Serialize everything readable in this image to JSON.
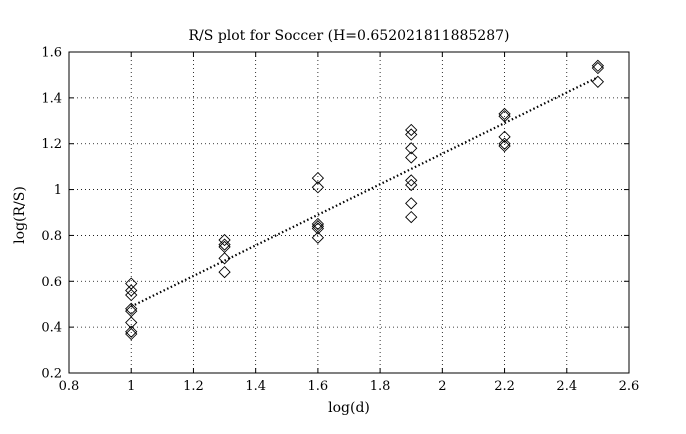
{
  "chart_data": {
    "type": "scatter",
    "title": "R/S plot for Soccer (H=0.652021811885287)",
    "xlabel": "log(d)",
    "ylabel": "log(R/S)",
    "xlim": [
      0.8,
      2.6
    ],
    "ylim": [
      0.2,
      1.6
    ],
    "xticks": [
      0.8,
      1,
      1.2,
      1.4,
      1.6,
      1.8,
      2,
      2.2,
      2.4,
      2.6
    ],
    "yticks": [
      0.2,
      0.4,
      0.6,
      0.8,
      1,
      1.2,
      1.4,
      1.6
    ],
    "grid": "dotted",
    "marker": "diamond",
    "points": [
      {
        "x": 1.0,
        "y": 0.59
      },
      {
        "x": 1.0,
        "y": 0.56
      },
      {
        "x": 1.0,
        "y": 0.54
      },
      {
        "x": 1.0,
        "y": 0.48
      },
      {
        "x": 1.0,
        "y": 0.47
      },
      {
        "x": 1.0,
        "y": 0.42
      },
      {
        "x": 1.0,
        "y": 0.38
      },
      {
        "x": 1.0,
        "y": 0.37
      },
      {
        "x": 1.3,
        "y": 0.78
      },
      {
        "x": 1.3,
        "y": 0.76
      },
      {
        "x": 1.3,
        "y": 0.75
      },
      {
        "x": 1.3,
        "y": 0.7
      },
      {
        "x": 1.3,
        "y": 0.64
      },
      {
        "x": 1.6,
        "y": 1.05
      },
      {
        "x": 1.6,
        "y": 1.01
      },
      {
        "x": 1.6,
        "y": 0.85
      },
      {
        "x": 1.6,
        "y": 0.84
      },
      {
        "x": 1.6,
        "y": 0.83
      },
      {
        "x": 1.6,
        "y": 0.79
      },
      {
        "x": 1.9,
        "y": 1.26
      },
      {
        "x": 1.9,
        "y": 1.24
      },
      {
        "x": 1.9,
        "y": 1.18
      },
      {
        "x": 1.9,
        "y": 1.14
      },
      {
        "x": 1.9,
        "y": 1.04
      },
      {
        "x": 1.9,
        "y": 1.02
      },
      {
        "x": 1.9,
        "y": 0.94
      },
      {
        "x": 1.9,
        "y": 0.88
      },
      {
        "x": 2.2,
        "y": 1.33
      },
      {
        "x": 2.2,
        "y": 1.32
      },
      {
        "x": 2.2,
        "y": 1.23
      },
      {
        "x": 2.2,
        "y": 1.2
      },
      {
        "x": 2.2,
        "y": 1.19
      },
      {
        "x": 2.5,
        "y": 1.54
      },
      {
        "x": 2.5,
        "y": 1.53
      },
      {
        "x": 2.5,
        "y": 1.47
      }
    ],
    "fit_line": {
      "style": "dotted",
      "start": {
        "x": 1.0,
        "y": 0.49
      },
      "end": {
        "x": 2.5,
        "y": 1.49
      }
    }
  }
}
